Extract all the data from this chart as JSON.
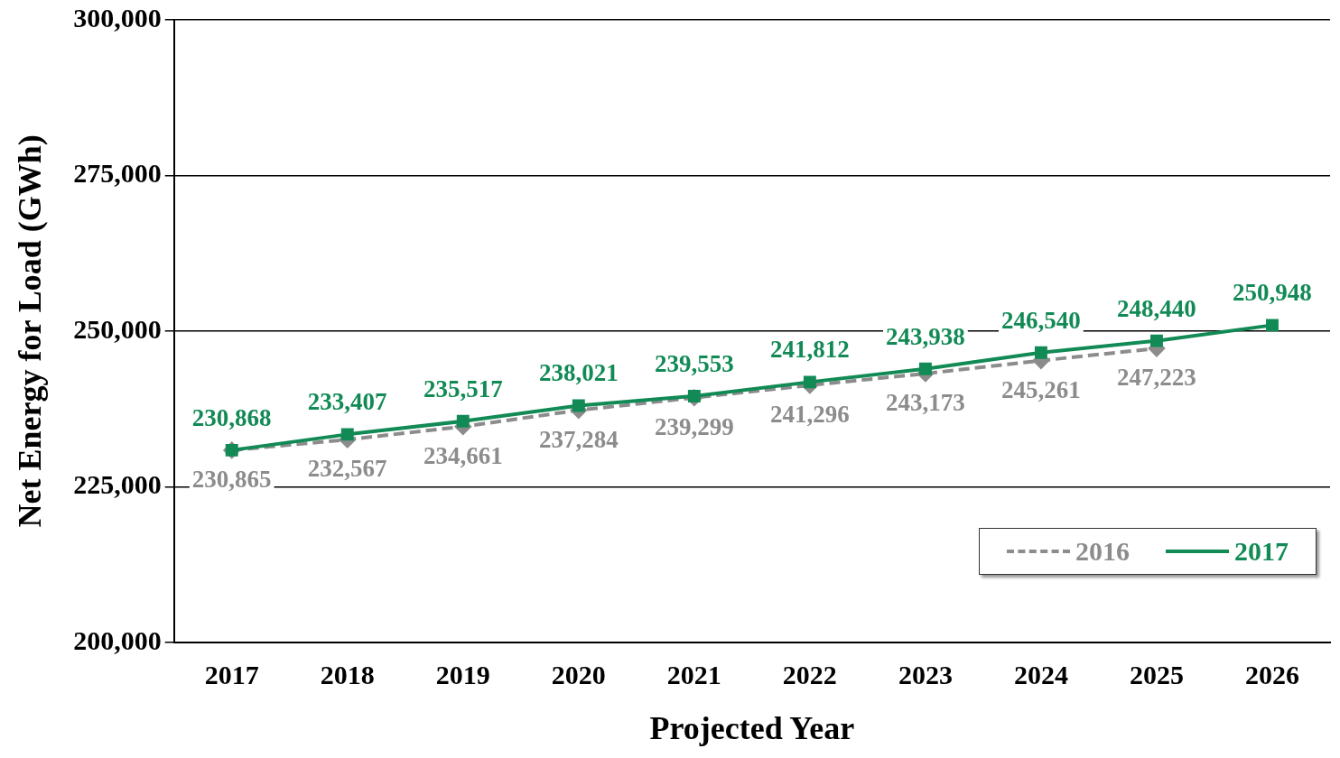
{
  "chart_data": {
    "type": "line",
    "categories": [
      "2017",
      "2018",
      "2019",
      "2020",
      "2021",
      "2022",
      "2023",
      "2024",
      "2025",
      "2026"
    ],
    "xlabel": "Projected Year",
    "ylabel": "Net Energy for Load (GWh)",
    "ylim": [
      200000,
      300000
    ],
    "yticks": [
      {
        "value": 200000,
        "label": "200,000"
      },
      {
        "value": 225000,
        "label": "225,000"
      },
      {
        "value": 250000,
        "label": "250,000"
      },
      {
        "value": 275000,
        "label": "275,000"
      },
      {
        "value": 300000,
        "label": "300,000"
      }
    ],
    "grid": "y",
    "legend": "bottom right",
    "series": [
      {
        "name": "2016",
        "color": "#8c8c8c",
        "marker": "diamond",
        "line_style": "dashed",
        "values": [
          230865,
          232567,
          234661,
          237284,
          239299,
          241296,
          243173,
          245261,
          247223,
          null
        ],
        "value_labels": [
          "230,865",
          "232,567",
          "234,661",
          "237,284",
          "239,299",
          "241,296",
          "243,173",
          "245,261",
          "247,223",
          null
        ]
      },
      {
        "name": "2017",
        "color": "#128a55",
        "marker": "square",
        "line_style": "solid",
        "values": [
          230868,
          233407,
          235517,
          238021,
          239553,
          241812,
          243938,
          246540,
          248440,
          250948
        ],
        "value_labels": [
          "230,868",
          "233,407",
          "235,517",
          "238,021",
          "239,553",
          "241,812",
          "243,938",
          "246,540",
          "248,440",
          "250,948"
        ]
      }
    ]
  }
}
